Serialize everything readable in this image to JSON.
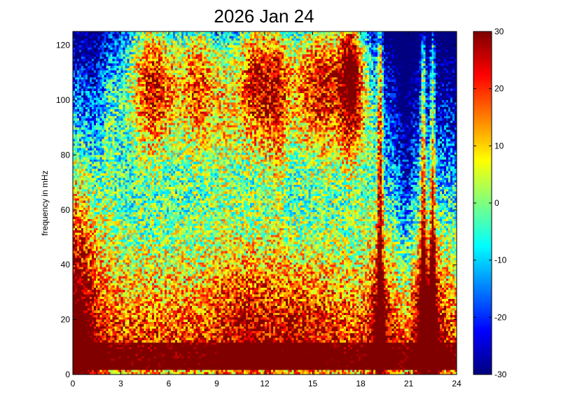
{
  "chart_data": {
    "type": "heatmap",
    "title": "2026 Jan 24",
    "xlabel": "",
    "ylabel": "frequency in mHz",
    "xlim": [
      0,
      24
    ],
    "ylim": [
      0,
      125
    ],
    "x_ticks": [
      "0",
      "3",
      "6",
      "9",
      "12",
      "15",
      "18",
      "21",
      "24"
    ],
    "y_ticks": [
      "0",
      "20",
      "40",
      "60",
      "80",
      "100",
      "120"
    ],
    "colorbar": {
      "range": [
        -30,
        30
      ],
      "ticks": [
        "30",
        "20",
        "10",
        "0",
        "-10",
        "-20",
        "-30"
      ],
      "colormap": "jet"
    },
    "grid": false,
    "features": {
      "low_frequency_band_mHz": [
        0,
        15
      ],
      "bright_vertical_streaks_hours": [
        19.2,
        21.9,
        22.5
      ]
    }
  }
}
